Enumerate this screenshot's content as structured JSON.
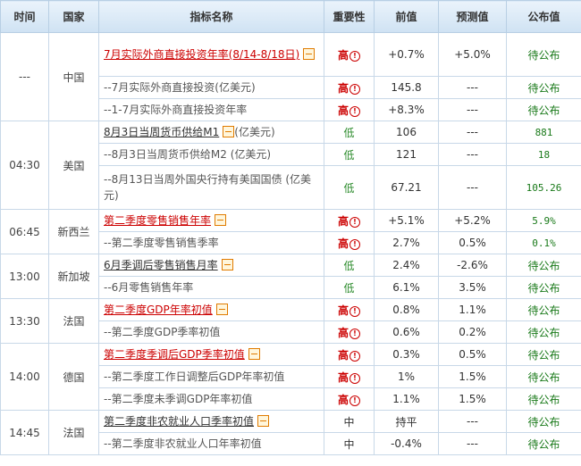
{
  "headers": [
    "时间",
    "国家",
    "指标名称",
    "重要性",
    "前值",
    "预测值",
    "公布值"
  ],
  "groups": [
    {
      "time": "---",
      "country": "中国",
      "rows": [
        {
          "name": "7月实际外商直接投资年率(8/14-8/18日)",
          "main": true,
          "importance": "高",
          "prev": "+0.7%",
          "forecast": "+5.0%",
          "actual": "待公布",
          "tall": true
        },
        {
          "name": "--7月实际外商直接投资(亿美元)",
          "importance": "高",
          "prev": "145.8",
          "forecast": "---",
          "actual": "待公布"
        },
        {
          "name": "--1-7月实际外商直接投资年率",
          "importance": "高",
          "prev": "+8.3%",
          "forecast": "---",
          "actual": "待公布"
        }
      ]
    },
    {
      "time": "04:30",
      "country": "美国",
      "rows": [
        {
          "name": "8月3日当周货币供给M1",
          "main": true,
          "plain": true,
          "suffix": "(亿美元)",
          "importance": "低",
          "prev": "106",
          "forecast": "---",
          "actual": "881"
        },
        {
          "name": "--8月3日当周货币供给M2 (亿美元)",
          "importance": "低",
          "prev": "121",
          "forecast": "---",
          "actual": "18"
        },
        {
          "name": "--8月13日当周外国央行持有美国国债 (亿美元)",
          "importance": "低",
          "prev": "67.21",
          "forecast": "---",
          "actual": "105.26",
          "tall": true
        }
      ]
    },
    {
      "time": "06:45",
      "country": "新西兰",
      "rows": [
        {
          "name": "第二季度零售销售年率",
          "main": true,
          "importance": "高",
          "prev": "+5.1%",
          "forecast": "+5.2%",
          "actual": "5.9%"
        },
        {
          "name": "--第二季度零售销售季率",
          "importance": "高",
          "prev": "2.7%",
          "forecast": "0.5%",
          "actual": "0.1%"
        }
      ]
    },
    {
      "time": "13:00",
      "country": "新加坡",
      "rows": [
        {
          "name": "6月季调后零售销售月率",
          "main": true,
          "plain": true,
          "importance": "低",
          "prev": "2.4%",
          "forecast": "-2.6%",
          "actual": "待公布"
        },
        {
          "name": "--6月零售销售年率",
          "importance": "低",
          "prev": "6.1%",
          "forecast": "3.5%",
          "actual": "待公布"
        }
      ]
    },
    {
      "time": "13:30",
      "country": "法国",
      "rows": [
        {
          "name": "第二季度GDP年率初值",
          "main": true,
          "importance": "高",
          "prev": "0.8%",
          "forecast": "1.1%",
          "actual": "待公布"
        },
        {
          "name": "--第二季度GDP季率初值",
          "importance": "高",
          "prev": "0.6%",
          "forecast": "0.2%",
          "actual": "待公布"
        }
      ]
    },
    {
      "time": "14:00",
      "country": "德国",
      "rows": [
        {
          "name": "第二季度季调后GDP季率初值",
          "main": true,
          "importance": "高",
          "prev": "0.3%",
          "forecast": "0.5%",
          "actual": "待公布"
        },
        {
          "name": "--第二季度工作日调整后GDP年率初值",
          "importance": "高",
          "prev": "1%",
          "forecast": "1.5%",
          "actual": "待公布"
        },
        {
          "name": "--第二季度未季调GDP年率初值",
          "importance": "高",
          "prev": "1.1%",
          "forecast": "1.5%",
          "actual": "待公布"
        }
      ]
    },
    {
      "time": "14:45",
      "country": "法国",
      "rows": [
        {
          "name": "第二季度非农就业人口季率初值",
          "main": true,
          "plain": true,
          "importance": "中",
          "prev": "持平",
          "forecast": "---",
          "actual": "待公布"
        },
        {
          "name": "--第二季度非农就业人口年率初值",
          "importance": "中",
          "prev": "-0.4%",
          "forecast": "---",
          "actual": "待公布"
        }
      ]
    }
  ]
}
